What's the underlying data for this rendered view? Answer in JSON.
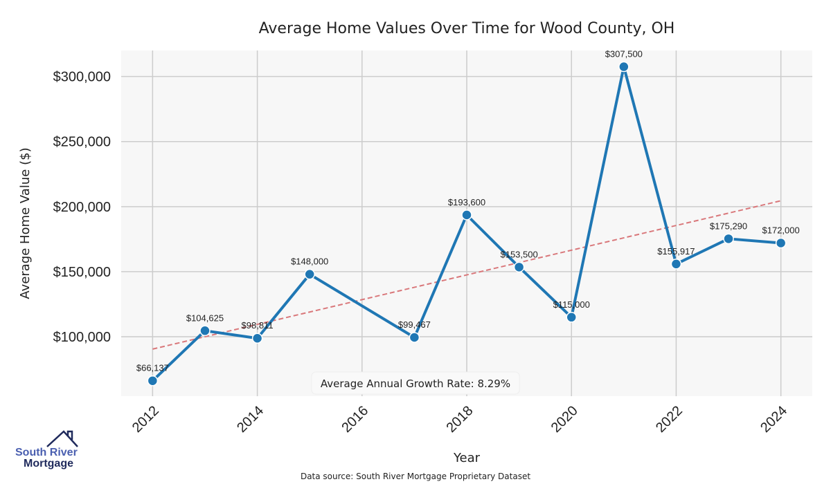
{
  "chart_data": {
    "type": "line",
    "title": "Average Home Values Over Time for Wood County, OH",
    "xlabel": "Year",
    "ylabel": "Average Home Value ($)",
    "x": [
      2012,
      2013,
      2014,
      2015,
      2017,
      2018,
      2019,
      2020,
      2021,
      2022,
      2023,
      2024
    ],
    "series": [
      {
        "name": "Average Home Value",
        "values": [
          66137,
          104625,
          98811,
          148000,
          99467,
          193600,
          153500,
          115000,
          307500,
          155917,
          175290,
          172000
        ],
        "color": "#1f77b4"
      }
    ],
    "data_labels": [
      "$66,137",
      "$104,625",
      "$98,811",
      "$148,000",
      "$99,467",
      "$193,600",
      "$153,500",
      "$115,000",
      "$307,500",
      "$155,917",
      "$175,290",
      "$172,000"
    ],
    "trend_line": {
      "x": [
        2012,
        2024
      ],
      "y": [
        90500,
        204500
      ],
      "color": "#d9777a",
      "style": "dashed"
    },
    "xticks": [
      2012,
      2014,
      2016,
      2018,
      2020,
      2022,
      2024
    ],
    "xtick_labels": [
      "2012",
      "2014",
      "2016",
      "2018",
      "2020",
      "2022",
      "2024"
    ],
    "yticks": [
      100000,
      150000,
      200000,
      250000,
      300000
    ],
    "ytick_labels": [
      "$100,000",
      "$150,000",
      "$200,000",
      "$250,000",
      "$300,000"
    ],
    "xlim": [
      2011.4,
      2024.6
    ],
    "ylim": [
      54300,
      320000
    ],
    "grid": true,
    "annotation": "Average Annual Growth Rate: 8.29%",
    "source": "Data source: South River Mortgage Proprietary Dataset"
  },
  "logo": {
    "line1": "South River",
    "line2": "Mortgage"
  }
}
